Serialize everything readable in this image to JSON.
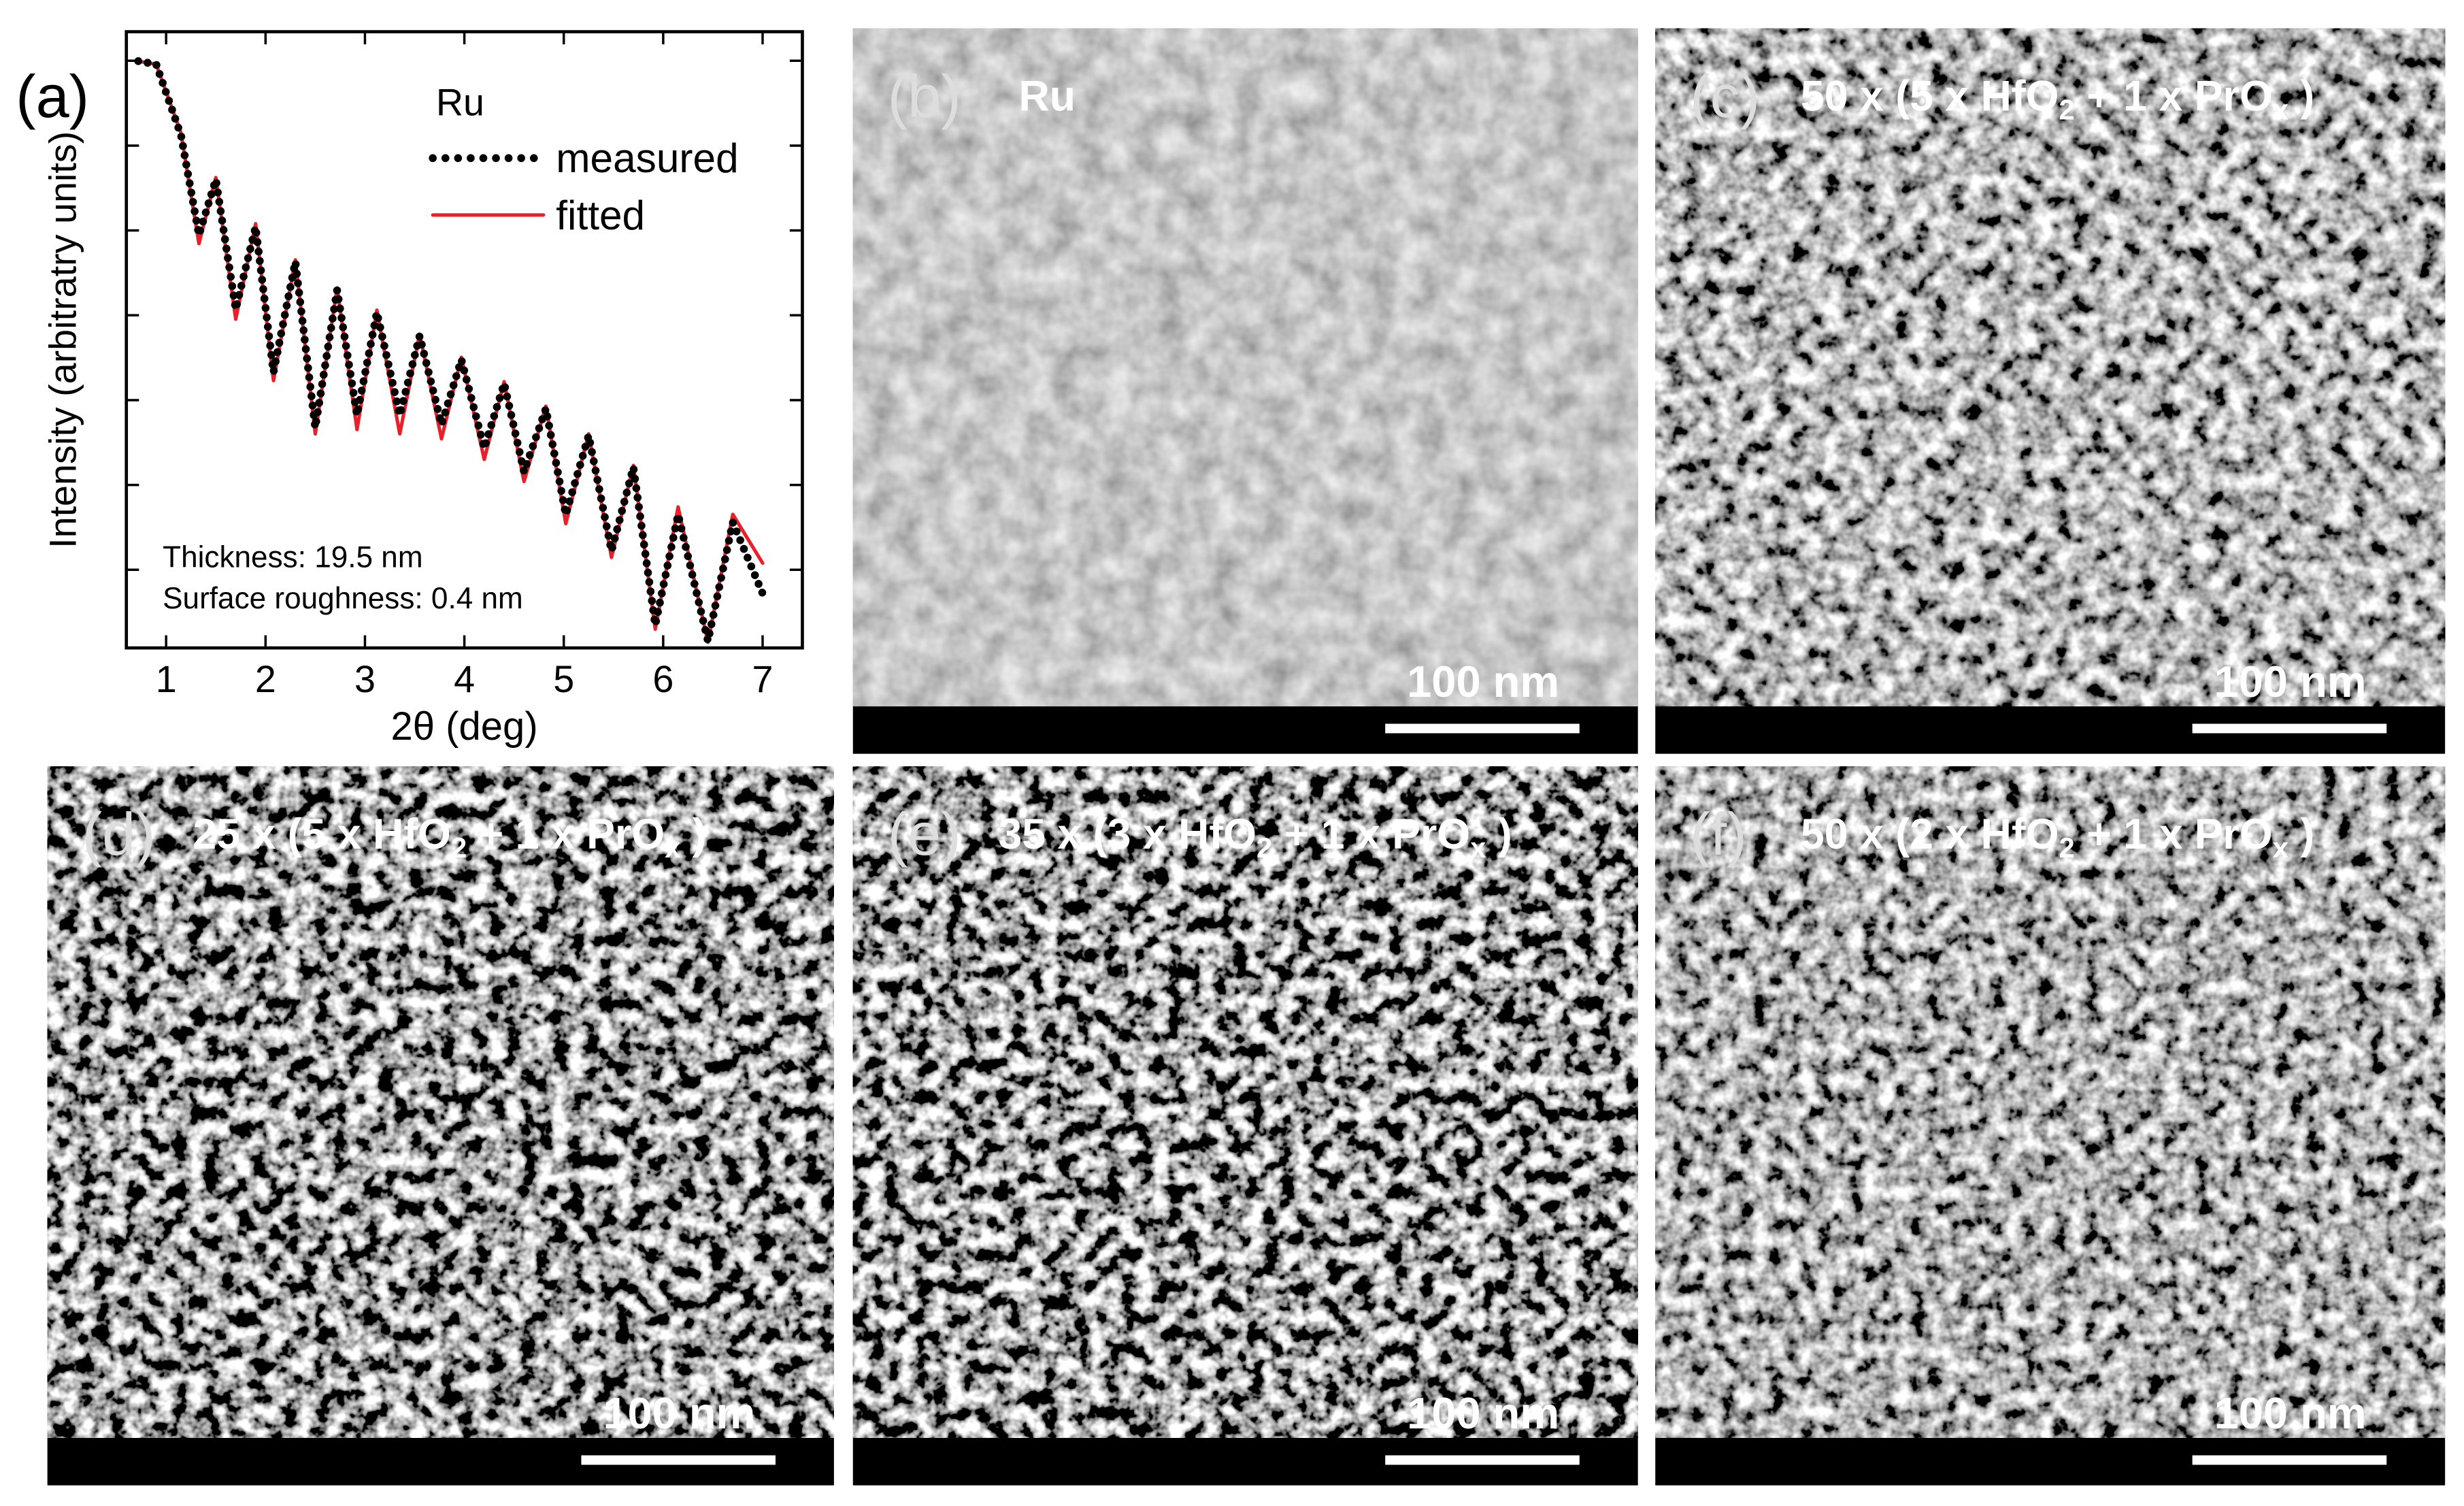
{
  "chart_data": {
    "type": "line",
    "panel_label": "(a)",
    "xlabel": "2θ (deg)",
    "ylabel": "Intensity (arbitratry units)",
    "legend_title": "Ru",
    "annotations": [
      "Thickness: 19.5 nm",
      "Surface roughness: 0.4 nm"
    ],
    "x": [
      0.72,
      0.9,
      1.15,
      1.33,
      1.5,
      1.7,
      1.9,
      2.08,
      2.3,
      2.5,
      2.72,
      2.92,
      3.12,
      3.35,
      3.55,
      3.77,
      3.97,
      4.2,
      4.4,
      4.6,
      4.82,
      5.02,
      5.25,
      5.48,
      5.7,
      5.92,
      6.15,
      6.45,
      6.7,
      7.0
    ],
    "series": [
      {
        "name": "measured",
        "color": "#000000",
        "style": "dotted",
        "values": [
          990000,
          910000,
          132000,
          8870,
          39800,
          1180,
          11000,
          213,
          4280,
          47.4,
          1980,
          66.8,
          1080,
          66.8,
          570,
          51.7,
          300,
          27.2,
          157,
          14.3,
          79.3,
          4.48,
          38.3,
          1.67,
          16.2,
          0.223,
          4.48,
          0.145,
          3.62,
          0.526
        ]
      },
      {
        "name": "fitted",
        "color": "#e8202a",
        "style": "solid",
        "values": [
          990000,
          910000,
          140000,
          7000,
          42000,
          900,
          12000,
          170,
          4500,
          40,
          2100,
          45,
          1150,
          40,
          600,
          35,
          320,
          20,
          165,
          11,
          85,
          3.5,
          40,
          1.4,
          17,
          0.2,
          5.5,
          0.14,
          4.5,
          1.2
        ]
      }
    ],
    "xlim": [
      0.6,
      7.4
    ],
    "xticks": [
      1,
      2,
      3,
      4,
      5,
      6,
      7
    ],
    "ylim": [
      0.12,
      2200000
    ],
    "yticks": [
      1,
      10,
      100,
      1000,
      10000,
      100000,
      1000000
    ],
    "log_y": true,
    "grid": false
  },
  "panels": [
    {
      "label": "(b)",
      "title_parts": [
        "Ru"
      ],
      "scale_bar": "100 nm"
    },
    {
      "label": "(c)",
      "title_parts": [
        "50 x (5 x HfO",
        "2",
        " + 1 x PrO",
        "x",
        " )"
      ],
      "scale_bar": "100 nm"
    },
    {
      "label": "(d)",
      "title_parts": [
        "25 x (5 x HfO",
        "2",
        " + 1 x PrO",
        "x",
        " )"
      ],
      "scale_bar": "100 nm"
    },
    {
      "label": "(e)",
      "title_parts": [
        "35 x (3 x HfO",
        "2",
        " + 1 x PrO",
        "x",
        " )"
      ],
      "scale_bar": "100 nm"
    },
    {
      "label": "(f)",
      "title_parts": [
        "50 x (2 x HfO",
        "2",
        " + 1 x PrO",
        "x",
        " )"
      ],
      "scale_bar": "100 nm"
    }
  ]
}
